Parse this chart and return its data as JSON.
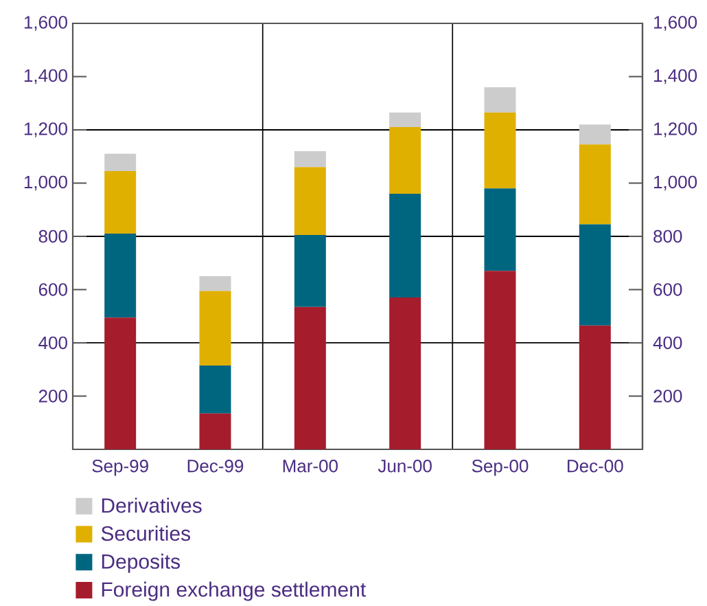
{
  "chart_data": {
    "type": "bar",
    "stacked": true,
    "categories": [
      "Sep-99",
      "Dec-99",
      "Mar-00",
      "Jun-00",
      "Sep-00",
      "Dec-00"
    ],
    "series": [
      {
        "name": "Foreign exchange settlement",
        "color": "#a51c2c",
        "values": [
          495,
          135,
          535,
          570,
          670,
          465
        ]
      },
      {
        "name": "Deposits",
        "color": "#006680",
        "values": [
          315,
          180,
          270,
          390,
          310,
          380
        ]
      },
      {
        "name": "Securities",
        "color": "#e0b000",
        "values": [
          235,
          280,
          255,
          250,
          285,
          300
        ]
      },
      {
        "name": "Derivatives",
        "color": "#cccccc",
        "values": [
          65,
          55,
          60,
          55,
          95,
          75
        ]
      }
    ],
    "ylim": [
      0,
      1600
    ],
    "yticks": [
      200,
      400,
      600,
      800,
      {
        "value": 1000,
        "label": "1,000"
      },
      {
        "value": 1200,
        "label": "1,200"
      },
      {
        "value": 1400,
        "label": "1,400"
      },
      {
        "value": 1600,
        "label": "1,600"
      }
    ],
    "y2lim": [
      0,
      1600
    ],
    "y2ticks": [
      200,
      400,
      600,
      800,
      {
        "value": 1000,
        "label": "1,000"
      },
      {
        "value": 1200,
        "label": "1,200"
      },
      {
        "value": 1400,
        "label": "1,400"
      },
      {
        "value": 1600,
        "label": "1,600"
      }
    ],
    "ref_lines": [
      {
        "axis": "y",
        "value": 400
      },
      {
        "axis": "y",
        "value": 800
      },
      {
        "axis": "y",
        "value": 1200
      }
    ],
    "legend": "bottom"
  }
}
